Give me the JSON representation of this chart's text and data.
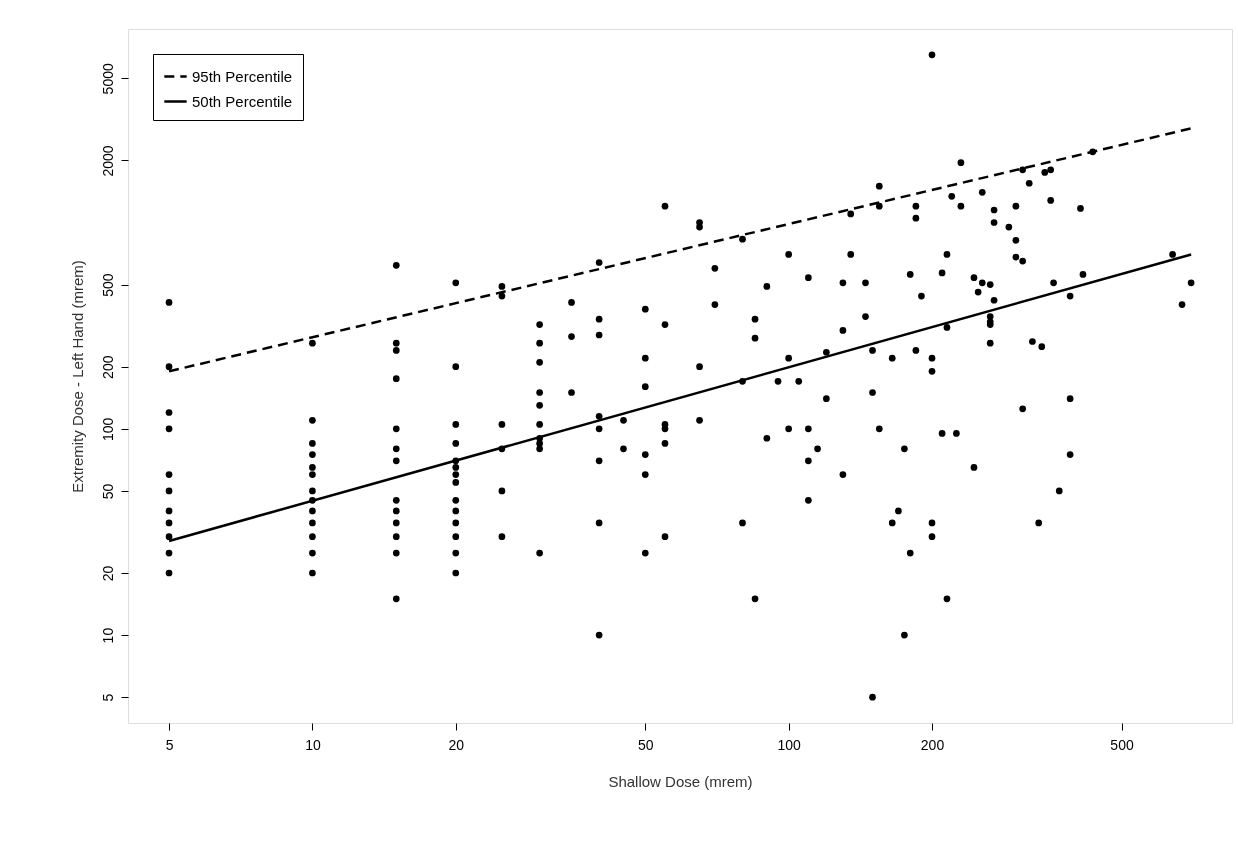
{
  "chart_data": {
    "type": "scatter",
    "xlabel": "Shallow Dose (mrem)",
    "ylabel": "Extremity Dose - Left Hand (mrem)",
    "log": "xy",
    "xlim": [
      4.1,
      853
    ],
    "ylim": [
      3.75,
      8670
    ],
    "xticks": [
      5,
      10,
      20,
      50,
      100,
      200,
      500
    ],
    "yticks": [
      5,
      10,
      20,
      50,
      100,
      200,
      500,
      2000,
      5000
    ],
    "grid": false,
    "legend": "top left",
    "series": [
      {
        "marker": "circle",
        "color": "#000000",
        "x": [
          5,
          5,
          5,
          5,
          5,
          5,
          5,
          5,
          5,
          5,
          5,
          10,
          10,
          10,
          10,
          10,
          10,
          10,
          10,
          10,
          10,
          10,
          10,
          10,
          15,
          15,
          15,
          15,
          15,
          15,
          15,
          15,
          15,
          15,
          15,
          15,
          15,
          20,
          20,
          20,
          20,
          20,
          20,
          20,
          20,
          20,
          20,
          20,
          20,
          20,
          20,
          25,
          25,
          25,
          25,
          25,
          25,
          30,
          30,
          30,
          30,
          30,
          30,
          30,
          30,
          30,
          30,
          35,
          35,
          35,
          40,
          40,
          40,
          40,
          40,
          40,
          40,
          40,
          45,
          45,
          50,
          50,
          50,
          50,
          50,
          50,
          55,
          55,
          55,
          55,
          55,
          55,
          65,
          65,
          65,
          65,
          70,
          70,
          80,
          80,
          80,
          85,
          85,
          85,
          90,
          90,
          95,
          100,
          100,
          100,
          105,
          110,
          110,
          110,
          110,
          115,
          120,
          120,
          130,
          130,
          130,
          135,
          135,
          145,
          145,
          150,
          150,
          150,
          155,
          155,
          155,
          165,
          165,
          170,
          175,
          175,
          180,
          180,
          185,
          185,
          185,
          190,
          200,
          200,
          200,
          200,
          200,
          210,
          210,
          215,
          215,
          215,
          220,
          225,
          230,
          230,
          245,
          245,
          250,
          255,
          255,
          265,
          265,
          265,
          265,
          265,
          270,
          270,
          270,
          290,
          300,
          300,
          300,
          310,
          310,
          310,
          320,
          325,
          335,
          340,
          345,
          355,
          355,
          360,
          370,
          390,
          390,
          390,
          410,
          415,
          435,
          640,
          670,
          700
        ],
        "values": [
          410,
          200,
          120,
          100,
          60,
          50,
          40,
          35,
          30,
          25,
          20,
          260,
          110,
          85,
          75,
          65,
          60,
          50,
          45,
          40,
          35,
          30,
          25,
          20,
          620,
          260,
          240,
          175,
          100,
          80,
          70,
          45,
          40,
          35,
          30,
          25,
          15,
          510,
          200,
          105,
          85,
          70,
          65,
          60,
          55,
          45,
          40,
          35,
          30,
          25,
          20,
          490,
          440,
          105,
          80,
          50,
          30,
          320,
          260,
          210,
          150,
          130,
          105,
          90,
          85,
          80,
          25,
          410,
          280,
          150,
          640,
          340,
          285,
          115,
          100,
          70,
          35,
          10,
          110,
          80,
          380,
          220,
          160,
          75,
          60,
          25,
          1200,
          320,
          105,
          100,
          85,
          30,
          1000,
          950,
          200,
          110,
          600,
          400,
          830,
          170,
          35,
          340,
          275,
          15,
          490,
          90,
          170,
          700,
          220,
          100,
          170,
          540,
          100,
          70,
          45,
          80,
          235,
          140,
          510,
          300,
          60,
          1100,
          700,
          510,
          350,
          240,
          150,
          5,
          1500,
          1200,
          100,
          220,
          35,
          40,
          80,
          10,
          560,
          25,
          1200,
          1050,
          240,
          440,
          6500,
          220,
          190,
          35,
          30,
          570,
          95,
          700,
          310,
          15,
          1340,
          95,
          1950,
          1200,
          540,
          65,
          460,
          1400,
          510,
          500,
          350,
          330,
          320,
          260,
          1150,
          1000,
          420,
          950,
          1200,
          820,
          680,
          650,
          1800,
          125,
          1550,
          265,
          35,
          250,
          1750,
          1800,
          1280,
          510,
          50,
          440,
          140,
          75,
          1170,
          560,
          2200,
          700,
          400,
          510
        ]
      },
      {
        "type": "line",
        "name": "95th Percentile",
        "color": "#000000",
        "line_style": "dashed",
        "x": [
          5,
          700
        ],
        "values": [
          190,
          2860
        ]
      },
      {
        "type": "line",
        "name": "50th Percentile",
        "color": "#000000",
        "line_style": "solid",
        "x": [
          5,
          700
        ],
        "values": [
          28.6,
          700
        ]
      }
    ]
  }
}
